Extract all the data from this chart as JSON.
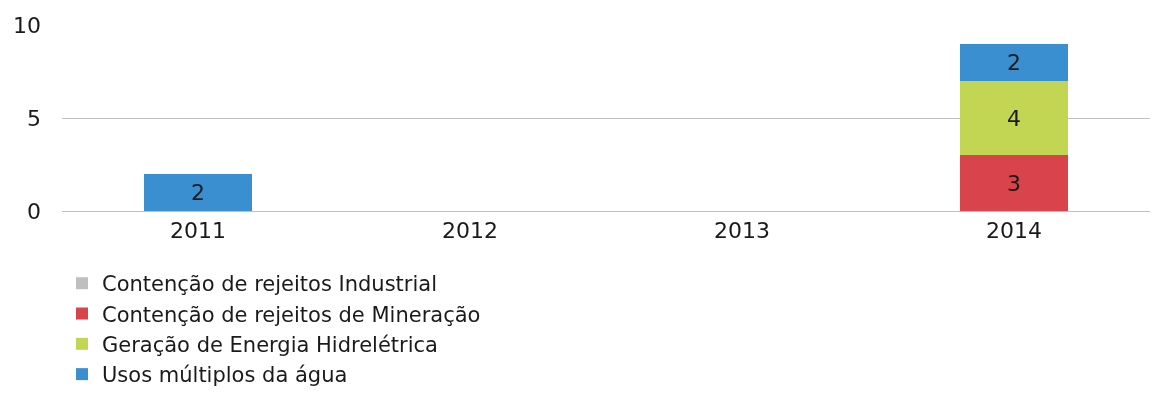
{
  "chart_data": {
    "type": "bar",
    "stacked": true,
    "categories": [
      "2011",
      "2012",
      "2013",
      "2014"
    ],
    "series": [
      {
        "name": "Contenção de rejeitos Industrial",
        "color": "#bfbfbf",
        "values": [
          null,
          null,
          null,
          null
        ]
      },
      {
        "name": "Contenção de rejeitos de Mineração",
        "color": "#d9434b",
        "values": [
          null,
          null,
          null,
          3
        ]
      },
      {
        "name": "Geração de Energia Hidrelétrica",
        "color": "#c3d653",
        "values": [
          null,
          null,
          null,
          4
        ]
      },
      {
        "name": "Usos múltiplos da água",
        "color": "#3a8fd0",
        "values": [
          2,
          null,
          null,
          2
        ]
      }
    ],
    "ylim": [
      0,
      10
    ],
    "yticks": [
      0,
      5,
      10
    ],
    "grid": "y",
    "legend": "bottom",
    "data_labels": true
  }
}
